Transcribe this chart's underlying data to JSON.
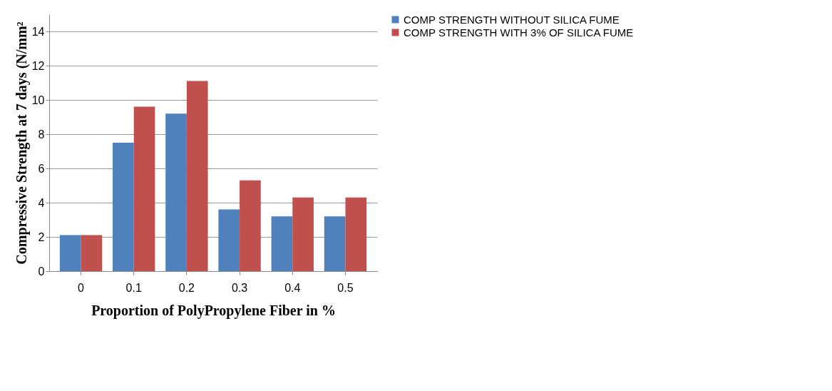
{
  "chart_data": {
    "type": "bar",
    "xlabel": "Proportion of PolyPropylene Fiber in %",
    "ylabel": "Compressive Strength at 7 days (N/mm²",
    "categories": [
      "0",
      "0.1",
      "0.2",
      "0.3",
      "0.4",
      "0.5"
    ],
    "series": [
      {
        "name": "COMP STRENGTH WITHOUT SILICA FUME",
        "color": "#4f81bd",
        "values": [
          2.1,
          7.5,
          9.2,
          3.6,
          3.2,
          3.2
        ]
      },
      {
        "name": "COMP STRENGTH WITH 3% OF SILICA FUME",
        "color": "#c0504d",
        "values": [
          2.1,
          9.6,
          11.1,
          5.3,
          4.3,
          4.3
        ]
      }
    ],
    "ylim": [
      0,
      15
    ],
    "yticks": [
      0,
      2,
      4,
      6,
      8,
      10,
      12,
      14
    ],
    "grid": "y",
    "legend": "right"
  }
}
